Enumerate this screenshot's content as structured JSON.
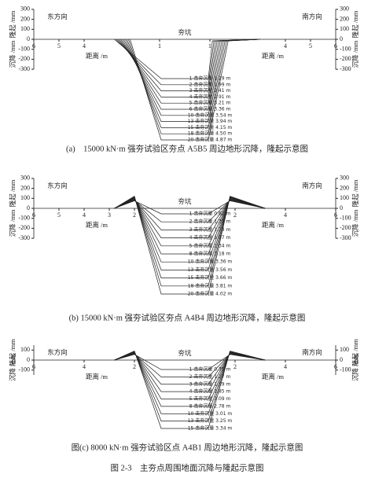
{
  "chart_data": [
    {
      "type": "settlement-profile",
      "title": "(a)　15000 kN·m 强夯试验区夯点 A5B5 周边地形沉降，隆起示意图",
      "left_direction": "东方向",
      "right_direction": "南方向",
      "center_label": "夯坑",
      "xlabel": "距离 /m",
      "ylabel_up": "隆起 /mm",
      "ylabel_down": "沉降 /mm",
      "ylim": [
        -300,
        300
      ],
      "yticks": [
        300,
        200,
        100,
        0,
        -100,
        -200,
        -300
      ],
      "xticks_left": [
        6,
        5,
        4,
        1
      ],
      "xticks_right": [
        1,
        4,
        5,
        6
      ],
      "blow_labels": [
        "1 击夯沉量 1.29 m",
        "2 击夯沉量 1.99 m",
        "3 击夯沉量 2.41 m",
        "4 击夯沉量 2.91 m",
        "5 击夯沉量 3.21 m",
        "6 击夯沉量 3.36 m",
        "10 击夯沉量 3.54 m",
        "13 击夯沉量 3.94 m",
        "15 击夯沉量 4.15 m",
        "18 击夯沉量 4.50 m",
        "20 击夯沉量 4.87 m"
      ]
    },
    {
      "type": "settlement-profile",
      "title": "(b) 15000 kN·m 强夯试验区夯点 A4B4 周边地形沉降，隆起示意图",
      "left_direction": "东方向",
      "right_direction": "南方向",
      "center_label": "夯坑",
      "xlabel": "距离 /m",
      "ylabel_up": "隆起 /mm",
      "ylabel_down": "沉降 /mm",
      "ylim": [
        -300,
        300
      ],
      "yticks": [
        300,
        200,
        100,
        0,
        -100,
        -200,
        -300
      ],
      "xticks_left": [
        6,
        5,
        4,
        3,
        2
      ],
      "xticks_right": [
        2,
        4,
        6
      ],
      "blow_labels": [
        "1 击夯沉量 0.62 m",
        "2 击夯沉量 1.33 m",
        "3 击夯沉量 1.73 m",
        "4 击夯沉量 1.97 m",
        "5 击夯沉量 2.34 m",
        "8 击夯沉量 3.18 m",
        "10 击夯沉量 3.36 m",
        "13 击夯沉量 3.56 m",
        "15 击夯沉量 3.66 m",
        "18 击夯沉量 3.81 m",
        "20 击夯沉量 4.02 m"
      ]
    },
    {
      "type": "settlement-profile",
      "title": "图(c) 8000 kN·m 强夯试验区点 A4B1 周边地形沉降，隆起示意图",
      "left_direction": "东方向",
      "right_direction": "南方向",
      "center_label": "夯坑",
      "xlabel": "距离 /m",
      "ylabel_up": "隆起 /mm",
      "ylabel_down": "沉降 /mm",
      "ylim": [
        -150,
        150
      ],
      "yticks": [
        100,
        0,
        -100
      ],
      "xticks_left": [
        6,
        4,
        2
      ],
      "xticks_right": [
        2,
        4,
        6
      ],
      "blow_labels": [
        "1 击夯沉量 0.75 m",
        "2 击夯沉量 1.27 m",
        "3 击夯沉量 1.59 m",
        "4 击夯沉量 1.85 m",
        "5 击夯沉量 2.09 m",
        "8 击夯沉量 2.78 m",
        "10 击夯沉量 3.01 m",
        "13 击夯沉量 3.25 m",
        "15 击夯沉量 3.34 m"
      ]
    }
  ],
  "figure_caption": "图 2-3　主夯点周围地面沉降与隆起示意图"
}
